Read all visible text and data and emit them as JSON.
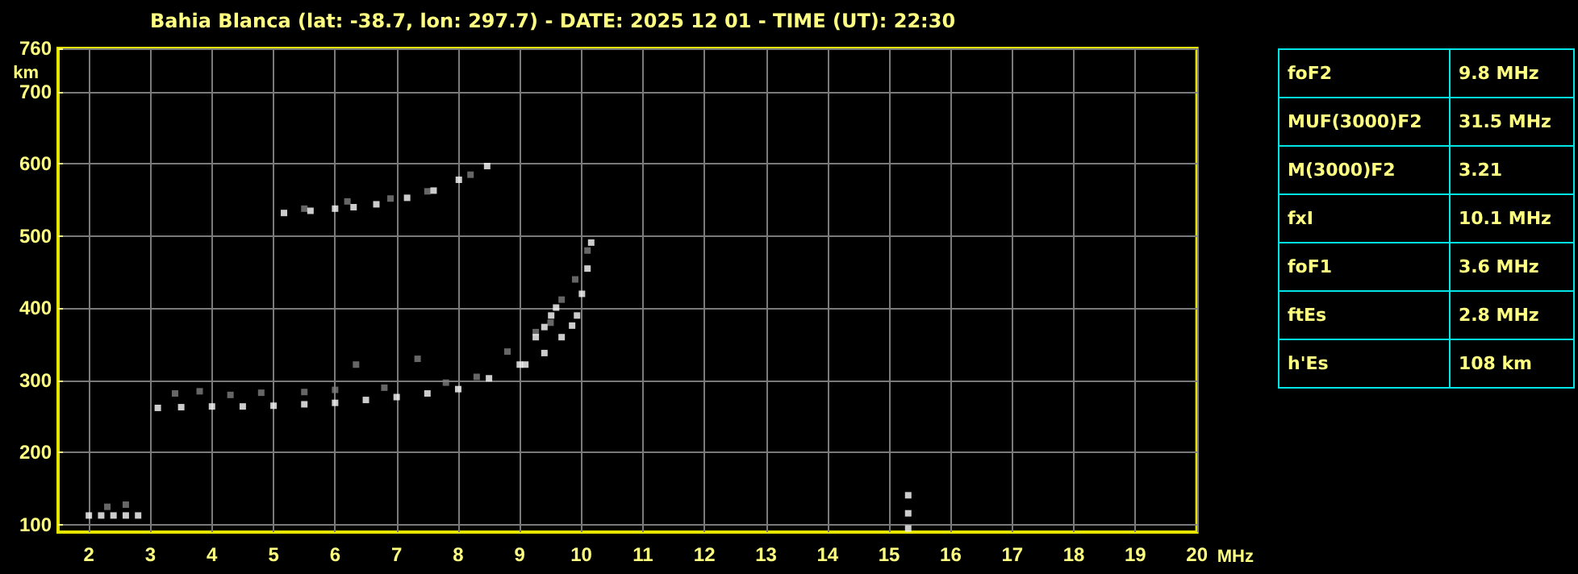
{
  "chart_data": [
    {
      "type": "scatter",
      "title": "Bahia Blanca (lat: -38.7, lon: 297.7) - DATE: 2025 12 01 - TIME (UT): 22:30",
      "xlabel": "MHz",
      "ylabel": "km",
      "xlim": [
        1.5,
        20
      ],
      "ylim": [
        90,
        760
      ],
      "xticks": [
        2,
        3,
        4,
        5,
        6,
        7,
        8,
        9,
        10,
        11,
        12,
        13,
        14,
        15,
        16,
        17,
        18,
        19,
        20
      ],
      "yticks": [
        100,
        200,
        300,
        400,
        500,
        600,
        700,
        760
      ],
      "grid": true,
      "marker": "square",
      "series": [
        {
          "color": "#808080",
          "x": [
            2.3,
            2.6,
            3.4,
            3.8,
            4.3,
            4.8,
            5.5,
            6.0,
            6.34,
            6.8,
            7.34,
            7.8,
            8.3,
            8.8,
            9.26,
            9.5,
            9.68,
            9.9,
            10.1,
            5.5,
            6.2,
            6.9,
            7.5,
            8.2
          ],
          "values": [
            125,
            128,
            282,
            285,
            280,
            283,
            284,
            287,
            322,
            290,
            330,
            297,
            305,
            340,
            367,
            380,
            412,
            440,
            480,
            538,
            548,
            552,
            562,
            585
          ]
        },
        {
          "color": "#ffffff",
          "x": [
            2.0,
            2.2,
            2.4,
            2.6,
            2.8,
            3.12,
            3.5,
            4.0,
            4.5,
            5.0,
            5.5,
            6.0,
            6.5,
            7.0,
            7.5,
            8.0,
            8.5,
            9.0,
            9.09,
            9.4,
            9.68,
            9.85,
            9.93,
            10.01,
            10.1,
            10.16,
            9.26,
            9.4,
            9.51,
            9.59,
            15.31,
            15.31,
            15.31
          ],
          "values": [
            113,
            113,
            113,
            113,
            113,
            262,
            263,
            264,
            264,
            265,
            267,
            269,
            273,
            277,
            282,
            288,
            303,
            322,
            322,
            338,
            360,
            376,
            390,
            420,
            455,
            491,
            360,
            374,
            390,
            401,
            95,
            116,
            141
          ]
        },
        {
          "color": "#ffffff",
          "x": [
            5.17,
            5.6,
            6.0,
            6.3,
            6.67,
            7.17,
            7.6,
            8.01,
            8.47
          ],
          "values": [
            532,
            535,
            538,
            540,
            544,
            553,
            563,
            578,
            597
          ]
        }
      ]
    },
    {
      "type": "other",
      "annotations": [
        "foF2",
        "9.8 MHz",
        "MUF(3000)F2",
        "31.5 MHz",
        "M(3000)F2",
        "3.21",
        "fxI",
        "10.1 MHz",
        "foF1",
        "3.6 MHz",
        "ftEs",
        "2.8 MHz",
        "h'Es",
        "108 km"
      ]
    }
  ]
}
